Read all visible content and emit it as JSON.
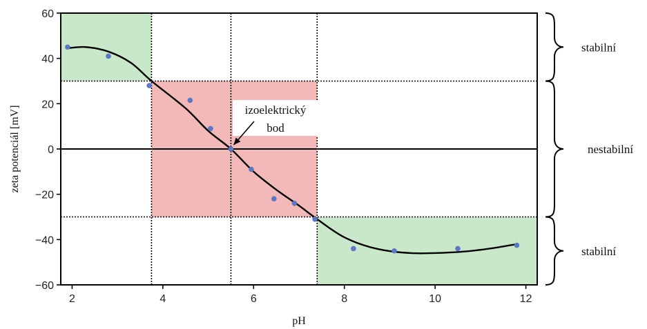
{
  "chart_data": {
    "type": "scatter",
    "xlabel": "pH",
    "ylabel": "zeta potenciál [mV]",
    "xlim": [
      1.75,
      12.25
    ],
    "ylim": [
      -60,
      60
    ],
    "x_ticks": [
      "2",
      "4",
      "6",
      "8",
      "10",
      "12"
    ],
    "y_ticks": [
      "60",
      "40",
      "20",
      "0",
      "−20",
      "−40",
      "−60"
    ],
    "grid": false,
    "points": [
      {
        "x": 1.9,
        "y": 45
      },
      {
        "x": 2.8,
        "y": 41
      },
      {
        "x": 3.7,
        "y": 28
      },
      {
        "x": 4.6,
        "y": 21.5
      },
      {
        "x": 5.05,
        "y": 9
      },
      {
        "x": 5.5,
        "y": 0
      },
      {
        "x": 5.95,
        "y": -9
      },
      {
        "x": 6.45,
        "y": -22
      },
      {
        "x": 6.9,
        "y": -24
      },
      {
        "x": 7.35,
        "y": -31
      },
      {
        "x": 8.2,
        "y": -44
      },
      {
        "x": 9.1,
        "y": -45
      },
      {
        "x": 10.5,
        "y": -44
      },
      {
        "x": 11.8,
        "y": -42.5
      }
    ],
    "fit_curve": [
      {
        "x": 1.9,
        "y": 44.5
      },
      {
        "x": 2.3,
        "y": 45
      },
      {
        "x": 2.8,
        "y": 43
      },
      {
        "x": 3.3,
        "y": 38
      },
      {
        "x": 3.75,
        "y": 30
      },
      {
        "x": 4.5,
        "y": 18
      },
      {
        "x": 5.0,
        "y": 8
      },
      {
        "x": 5.5,
        "y": 0
      },
      {
        "x": 6.0,
        "y": -10
      },
      {
        "x": 6.5,
        "y": -18
      },
      {
        "x": 7.0,
        "y": -25
      },
      {
        "x": 7.4,
        "y": -31
      },
      {
        "x": 8.0,
        "y": -39
      },
      {
        "x": 8.7,
        "y": -44
      },
      {
        "x": 9.5,
        "y": -46
      },
      {
        "x": 10.5,
        "y": -45.5
      },
      {
        "x": 11.2,
        "y": -44
      },
      {
        "x": 11.8,
        "y": -42
      }
    ],
    "reference_lines": {
      "horizontal": [
        30,
        -30
      ],
      "vertical": [
        3.75,
        5.5,
        7.4
      ],
      "zero_line": 0
    },
    "regions": [
      {
        "label": "stabilní",
        "x": [
          1.75,
          3.75
        ],
        "y": [
          30,
          60
        ],
        "color": "#c9e8c9"
      },
      {
        "label": "nestabilní",
        "x": [
          3.75,
          7.4
        ],
        "y": [
          -30,
          30
        ],
        "color": "#f3b8b8"
      },
      {
        "label": "stabilní",
        "x": [
          7.4,
          12.25
        ],
        "y": [
          -60,
          -30
        ],
        "color": "#c9e8c9"
      }
    ],
    "annotations": [
      {
        "lines": [
          "izoelektrický",
          "bod"
        ],
        "x": 5.5,
        "y": 0
      }
    ],
    "side_labels": [
      "stabilní",
      "nestabilní",
      "stabilní"
    ],
    "point_color": "#5b78c4",
    "curve_color": "#000000"
  }
}
